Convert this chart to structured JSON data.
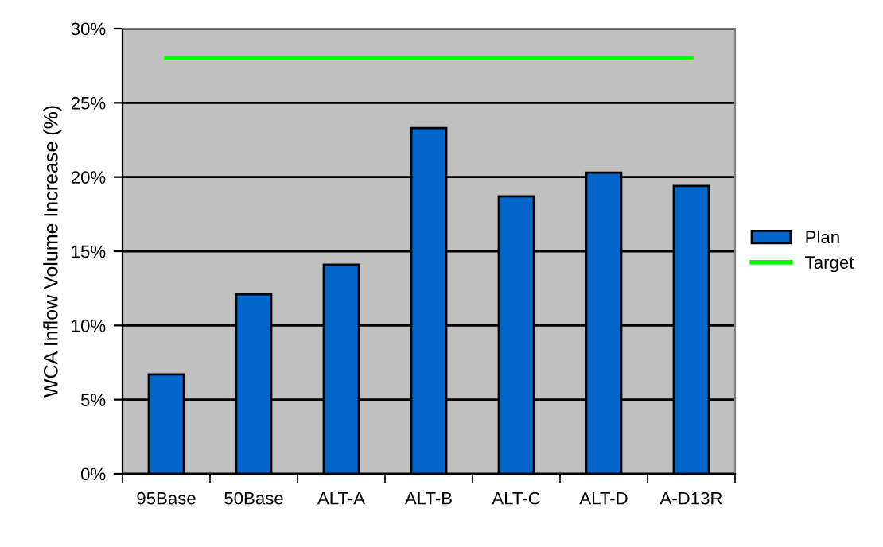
{
  "chart_data": {
    "type": "bar",
    "ylabel": "WCA Inflow Volume Increase (%)",
    "categories": [
      "95Base",
      "50Base",
      "ALT-A",
      "ALT-B",
      "ALT-C",
      "ALT-D",
      "A-D13R"
    ],
    "series": [
      {
        "name": "Plan",
        "color": "#0066cc",
        "values": [
          6.7,
          12.1,
          14.1,
          23.3,
          18.7,
          20.3,
          19.4
        ]
      },
      {
        "name": "Target",
        "type": "line",
        "color": "#00ff00",
        "values": [
          28,
          28,
          28,
          28,
          28,
          28,
          28
        ]
      }
    ],
    "ylim": [
      0,
      30
    ],
    "yticks": [
      {
        "value": 0,
        "label": "0%"
      },
      {
        "value": 5,
        "label": "5%"
      },
      {
        "value": 10,
        "label": "10%"
      },
      {
        "value": 15,
        "label": "15%"
      },
      {
        "value": 20,
        "label": "20%"
      },
      {
        "value": 25,
        "label": "25%"
      },
      {
        "value": 30,
        "label": "30%"
      }
    ],
    "grid": "y",
    "legend": "right",
    "marker": "none",
    "line_style": "solid"
  }
}
